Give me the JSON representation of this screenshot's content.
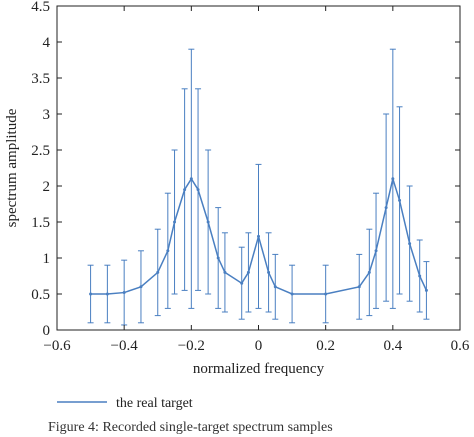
{
  "chart_data": {
    "type": "line",
    "xlabel": "normalized frequency",
    "ylabel": "spectrum amplitude",
    "xlim": [
      -0.6,
      0.6
    ],
    "ylim": [
      0,
      4.5
    ],
    "xticks": [
      -0.6,
      -0.4,
      -0.2,
      0,
      0.2,
      0.4,
      0.6
    ],
    "yticks": [
      0,
      0.5,
      1,
      1.5,
      2,
      2.5,
      3,
      3.5,
      4,
      4.5
    ],
    "xtick_labels": [
      "−0.6",
      "−0.4",
      "−0.2",
      "0",
      "0.2",
      "0.4",
      "0.6"
    ],
    "ytick_labels": [
      "0",
      "0.5",
      "1",
      "1.5",
      "2",
      "2.5",
      "3",
      "3.5",
      "4",
      "4.5"
    ],
    "grid": false,
    "legend_position": "bottom-left",
    "series": [
      {
        "name": "the real target",
        "color": "#4a7fc1",
        "style": "line with error bars",
        "x": [
          -0.5,
          -0.45,
          -0.4,
          -0.35,
          -0.3,
          -0.27,
          -0.25,
          -0.22,
          -0.2,
          -0.18,
          -0.15,
          -0.12,
          -0.1,
          -0.05,
          -0.03,
          0,
          0.03,
          0.05,
          0.1,
          0.2,
          0.3,
          0.33,
          0.35,
          0.38,
          0.4,
          0.42,
          0.45,
          0.48,
          0.5
        ],
        "y": [
          0.5,
          0.5,
          0.52,
          0.6,
          0.8,
          1.1,
          1.5,
          1.95,
          2.1,
          1.95,
          1.5,
          1.0,
          0.8,
          0.65,
          0.8,
          1.3,
          0.8,
          0.6,
          0.5,
          0.5,
          0.6,
          0.8,
          1.1,
          1.7,
          2.1,
          1.8,
          1.2,
          0.75,
          0.55
        ],
        "error": [
          0.4,
          0.4,
          0.45,
          0.5,
          0.6,
          0.8,
          1.0,
          1.4,
          1.8,
          1.4,
          1.0,
          0.7,
          0.55,
          0.5,
          0.55,
          1.0,
          0.55,
          0.45,
          0.4,
          0.4,
          0.45,
          0.6,
          0.8,
          1.3,
          1.8,
          1.3,
          0.8,
          0.5,
          0.4
        ]
      }
    ]
  },
  "caption": "Figure 4: Recorded single-target spectrum samples"
}
